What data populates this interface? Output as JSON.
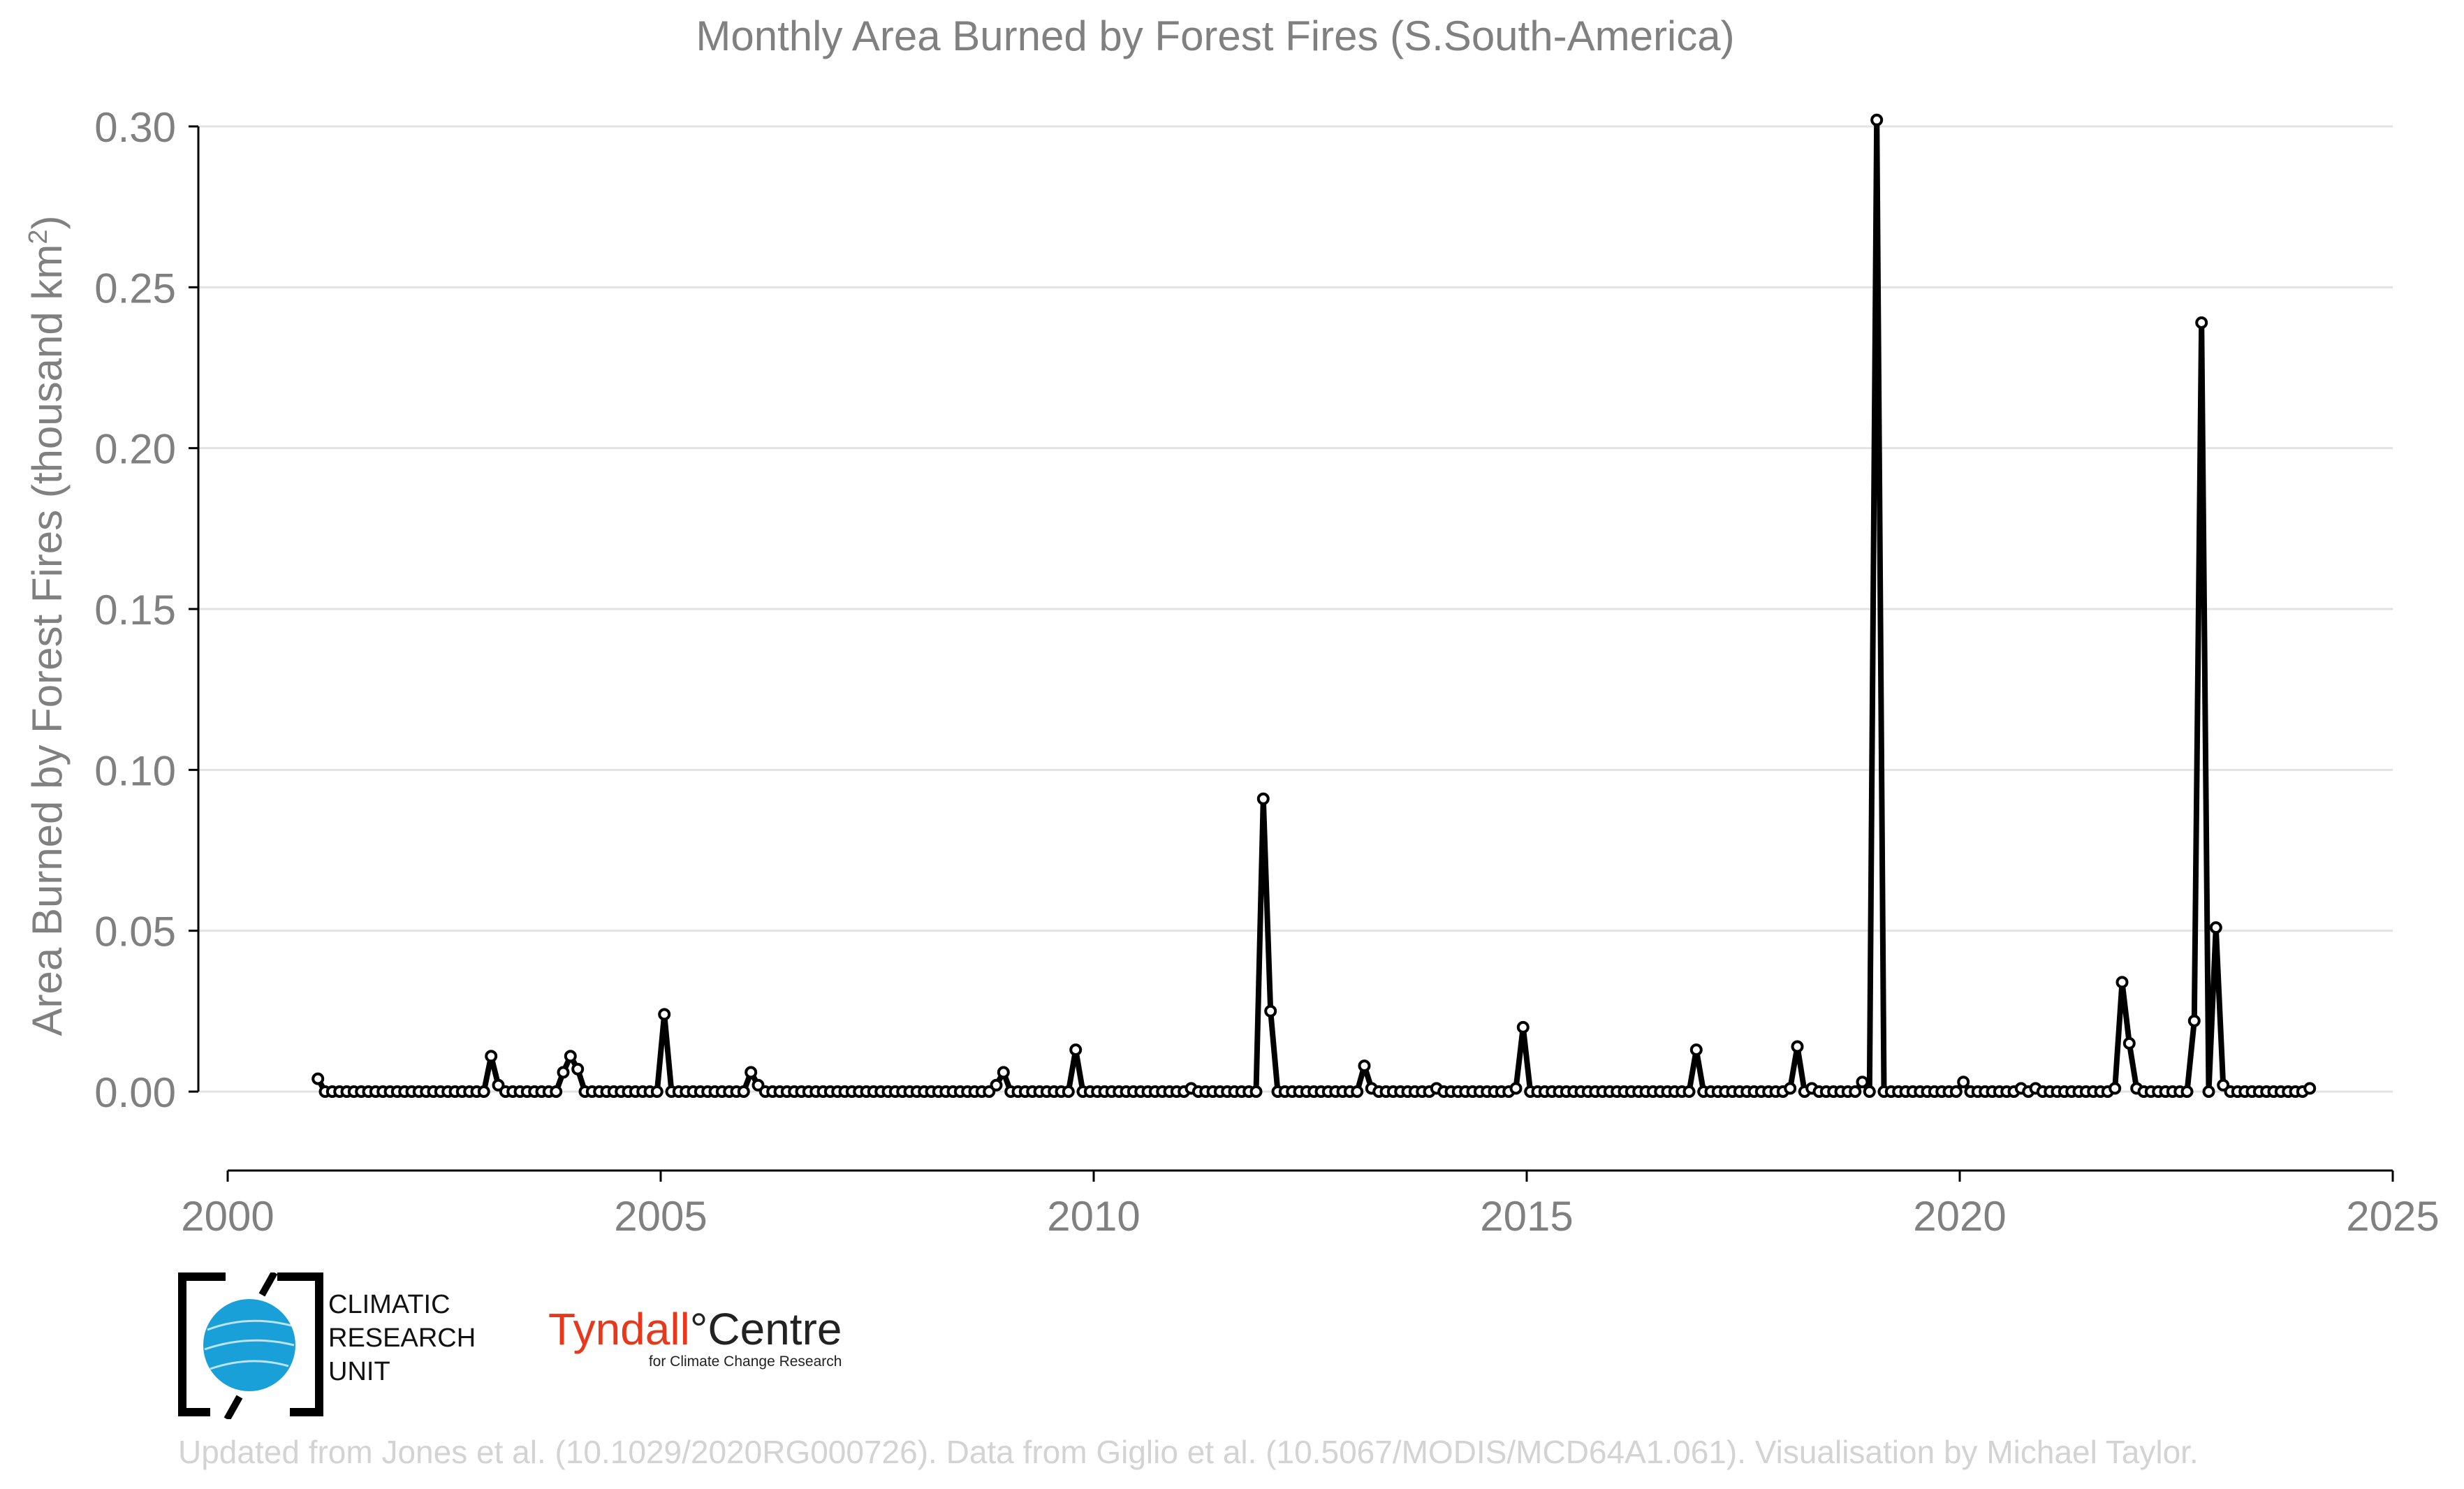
{
  "chart_data": {
    "type": "line",
    "title": "Monthly Area Burned by Forest Fires (S.South-America)",
    "ylabel_prefix": "Area Burned by Forest Fires (thousand km",
    "ylabel_sup": "2",
    "ylabel_suffix": ")",
    "xlabel": "",
    "xlim": [
      2000,
      2025
    ],
    "ylim": [
      -0.02,
      0.31
    ],
    "xticks": [
      2000,
      2005,
      2010,
      2015,
      2020,
      2025
    ],
    "xtick_labels": [
      "2000",
      "2005",
      "2010",
      "2015",
      "2020",
      "2025"
    ],
    "yticks": [
      0.0,
      0.05,
      0.1,
      0.15,
      0.2,
      0.25,
      0.3
    ],
    "ytick_labels": [
      "0.00",
      "0.05",
      "0.10",
      "0.15",
      "0.20",
      "0.25",
      "0.30"
    ],
    "grid": true,
    "line_color": "#000000",
    "marker_fill": "#ffffff",
    "series": [
      {
        "start": "2001-01",
        "frequency": "monthly",
        "values": [
          0.004,
          0,
          0,
          0,
          0,
          0,
          0,
          0,
          0,
          0,
          0,
          0,
          0,
          0,
          0,
          0,
          0,
          0,
          0,
          0,
          0,
          0,
          0,
          0,
          0.011,
          0.002,
          0,
          0,
          0,
          0,
          0,
          0,
          0,
          0,
          0.006,
          0.011,
          0.007,
          0,
          0,
          0,
          0,
          0,
          0,
          0,
          0,
          0,
          0,
          0,
          0.024,
          0,
          0,
          0,
          0,
          0,
          0,
          0,
          0,
          0,
          0,
          0,
          0.006,
          0.002,
          0,
          0,
          0,
          0,
          0,
          0,
          0,
          0,
          0,
          0,
          0,
          0,
          0,
          0,
          0,
          0,
          0,
          0,
          0,
          0,
          0,
          0,
          0,
          0,
          0,
          0,
          0,
          0,
          0,
          0,
          0,
          0,
          0.002,
          0.006,
          0,
          0,
          0,
          0,
          0,
          0,
          0,
          0,
          0,
          0.013,
          0,
          0,
          0,
          0,
          0,
          0,
          0,
          0,
          0,
          0,
          0,
          0,
          0,
          0,
          0,
          0.001,
          0,
          0,
          0,
          0,
          0,
          0,
          0,
          0,
          0,
          0.091,
          0.025,
          0,
          0,
          0,
          0,
          0,
          0,
          0,
          0,
          0,
          0,
          0,
          0,
          0.008,
          0.001,
          0,
          0,
          0,
          0,
          0,
          0,
          0,
          0,
          0.001,
          0,
          0,
          0,
          0,
          0,
          0,
          0,
          0,
          0,
          0,
          0.001,
          0.02,
          0,
          0,
          0,
          0,
          0,
          0,
          0,
          0,
          0,
          0,
          0,
          0,
          0,
          0,
          0,
          0,
          0,
          0,
          0,
          0,
          0,
          0,
          0,
          0.013,
          0,
          0,
          0,
          0,
          0,
          0,
          0,
          0,
          0,
          0,
          0,
          0,
          0.001,
          0.014,
          0,
          0.001,
          0,
          0,
          0,
          0,
          0,
          0,
          0.003,
          0,
          0.302,
          0,
          0,
          0,
          0,
          0,
          0,
          0,
          0,
          0,
          0,
          0,
          0.003,
          0,
          0,
          0,
          0,
          0,
          0,
          0,
          0.001,
          0,
          0.001,
          0,
          0,
          0,
          0,
          0,
          0,
          0,
          0,
          0,
          0,
          0.001,
          0.034,
          0.015,
          0.001,
          0,
          0,
          0,
          0,
          0,
          0,
          0,
          0.022,
          0.239,
          0,
          0.051,
          0.002,
          0,
          0,
          0,
          0,
          0,
          0,
          0,
          0,
          0,
          0,
          0,
          0.001
        ]
      }
    ]
  },
  "logos": {
    "cru_line1": "CLIMATIC",
    "cru_line2": "RESEARCH",
    "cru_line3": "UNIT",
    "tyndall_red": "Tyndall",
    "tyndall_dark": "°Centre",
    "tyndall_sub": "for Climate Change Research"
  },
  "credit": "Updated from Jones et al. (10.1029/2020RG000726). Data from Giglio et al. (10.5067/MODIS/MCD64A1.061). Visualisation by Michael Taylor.",
  "colors": {
    "axis_text": "#808080",
    "grid": "#e3e3e3",
    "credit": "#d3d3d3",
    "cru_blue": "#1aa0d8",
    "tyndall_red": "#e8381c"
  }
}
